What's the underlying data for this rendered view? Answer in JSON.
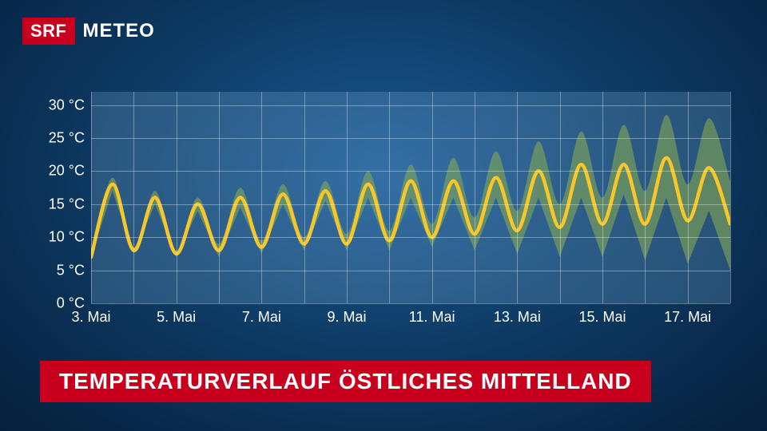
{
  "branding": {
    "logo_box": "SRF",
    "logo_text": "METEO",
    "logo_box_bg": "#c8001e",
    "logo_text_color": "#ffffff"
  },
  "title": {
    "text": "TEMPERATURVERLAUF ÖSTLICHES MITTELLAND",
    "bg": "#c8001e",
    "color": "#ffffff",
    "fontsize": 28
  },
  "chart": {
    "type": "line",
    "background_overlay": "rgba(120,170,210,0.28)",
    "grid_color": "rgba(255,255,255,0.35)",
    "line_color": "#f7c62a",
    "line_width": 4.5,
    "band_color": "rgba(140,175,80,0.55)",
    "y_axis": {
      "min": 0,
      "max": 32,
      "ticks": [
        0,
        5,
        10,
        15,
        20,
        25,
        30
      ],
      "labels": [
        "0 °C",
        "5 °C",
        "10 °C",
        "15 °C",
        "20 °C",
        "25 °C",
        "30 °C"
      ],
      "label_fontsize": 18
    },
    "x_axis": {
      "n_days": 15,
      "day_start": 3,
      "labels": [
        "3. Mai",
        "5. Mai",
        "7. Mai",
        "9. Mai",
        "11. Mai",
        "13. Mai",
        "15. Mai",
        "17. Mai"
      ],
      "label_positions": [
        0,
        2,
        4,
        6,
        8,
        10,
        12,
        14
      ],
      "label_fontsize": 18
    },
    "series_main": [
      7,
      18,
      8,
      16,
      7.5,
      15,
      8,
      16,
      8.5,
      16.5,
      9,
      17,
      9,
      18,
      9.5,
      18.5,
      10,
      18.5,
      10.5,
      19,
      11,
      20,
      11.5,
      21,
      12,
      21,
      12,
      22,
      12.5,
      20.5,
      12
    ],
    "band_lower": [
      7,
      17,
      7.5,
      15,
      7,
      14,
      7,
      14.5,
      7.5,
      15,
      8,
      15.5,
      8,
      16,
      8,
      16,
      8.5,
      16,
      8,
      16,
      7.5,
      16,
      7,
      16,
      7,
      16.5,
      6.5,
      16,
      6,
      14,
      5
    ],
    "band_upper": [
      7,
      19,
      8.5,
      17,
      8,
      16,
      9,
      17.5,
      9.5,
      18,
      10,
      18.5,
      10.5,
      20,
      11,
      21,
      12,
      22,
      13,
      23,
      14,
      24.5,
      15,
      26,
      16,
      27,
      17,
      28.5,
      18,
      28,
      18.5
    ]
  }
}
